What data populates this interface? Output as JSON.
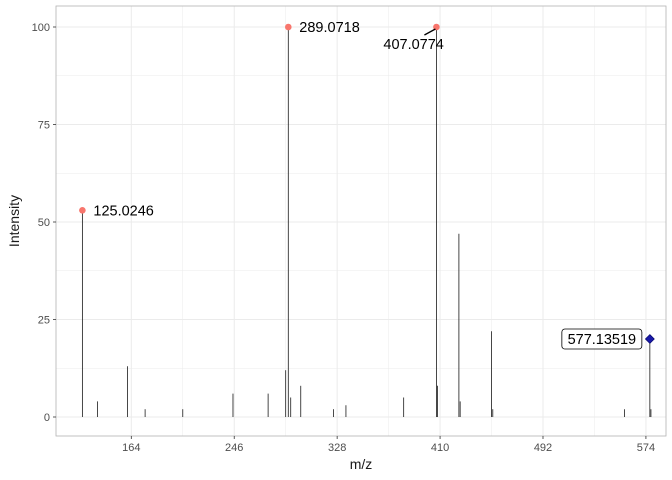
{
  "chart_data": {
    "type": "bar",
    "subtype": "spectrum-stick",
    "xlabel": "m/z",
    "ylabel": "Intensity",
    "xlim": [
      104,
      590
    ],
    "ylim": [
      0,
      100
    ],
    "x_ticks": [
      164,
      246,
      328,
      410,
      492,
      574
    ],
    "y_ticks": [
      0,
      25,
      50,
      75,
      100
    ],
    "grid": true,
    "colors": {
      "stick": "#1a1a1a",
      "highlight_point": "#f8766d",
      "precursor_point": "#1a1aa8",
      "grid": "#ebebeb",
      "panel_border": "#b3b3b3"
    },
    "peaks": [
      {
        "x": 125.0246,
        "y": 53
      },
      {
        "x": 137.0,
        "y": 4
      },
      {
        "x": 161.0,
        "y": 13
      },
      {
        "x": 175.0,
        "y": 2
      },
      {
        "x": 205.0,
        "y": 2
      },
      {
        "x": 245.0,
        "y": 6
      },
      {
        "x": 273.0,
        "y": 6
      },
      {
        "x": 287.0,
        "y": 12
      },
      {
        "x": 289.0718,
        "y": 100
      },
      {
        "x": 291.0,
        "y": 5
      },
      {
        "x": 299.0,
        "y": 8
      },
      {
        "x": 325.0,
        "y": 2
      },
      {
        "x": 335.0,
        "y": 3
      },
      {
        "x": 381.0,
        "y": 5
      },
      {
        "x": 407.0774,
        "y": 100
      },
      {
        "x": 408.0,
        "y": 8
      },
      {
        "x": 425.0,
        "y": 47
      },
      {
        "x": 426.0,
        "y": 4
      },
      {
        "x": 451.0,
        "y": 22
      },
      {
        "x": 452.0,
        "y": 2
      },
      {
        "x": 557.0,
        "y": 2
      },
      {
        "x": 577.13519,
        "y": 20
      },
      {
        "x": 578.0,
        "y": 2
      }
    ],
    "highlighted": [
      {
        "label": "125.0246",
        "x": 125.0246,
        "y": 53
      },
      {
        "label": "289.0718",
        "x": 289.0718,
        "y": 100
      },
      {
        "label": "407.0774",
        "x": 407.0774,
        "y": 100
      }
    ],
    "precursor": {
      "label": "577.13519",
      "x": 577.13519,
      "y": 20
    }
  }
}
